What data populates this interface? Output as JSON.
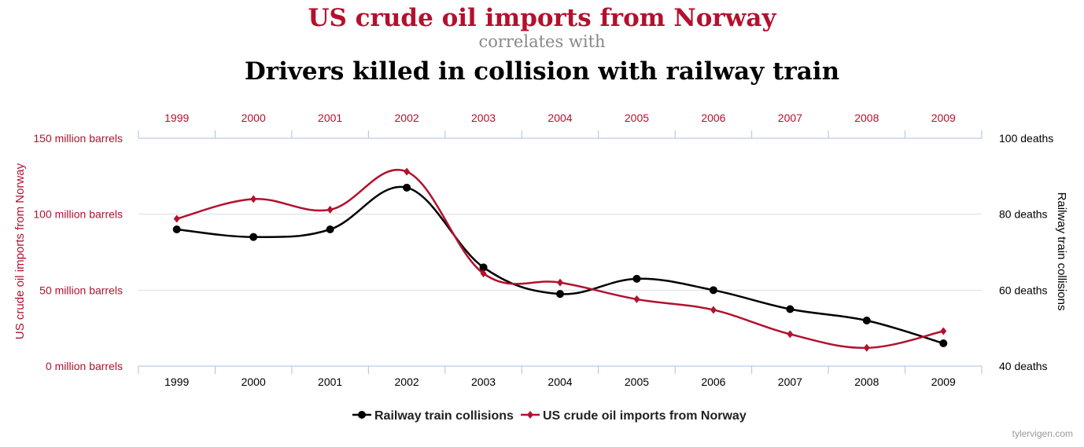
{
  "chart_data": {
    "type": "line",
    "title": "US crude oil imports from Norway",
    "subtitle": "correlates with",
    "title2": "Drivers killed in collision with railway train",
    "categories": [
      "1999",
      "2000",
      "2001",
      "2002",
      "2003",
      "2004",
      "2005",
      "2006",
      "2007",
      "2008",
      "2009"
    ],
    "series": [
      {
        "name": "Railway train collisions",
        "axis": "right",
        "color": "#000000",
        "marker": "circle",
        "values": [
          76,
          74,
          76,
          87,
          66,
          59,
          63,
          60,
          55,
          52,
          46
        ]
      },
      {
        "name": "US crude oil imports from Norway",
        "axis": "left",
        "color": "#b3112e",
        "marker": "diamond",
        "values": [
          97,
          110,
          103,
          128,
          61,
          55,
          44,
          37,
          21,
          12,
          23
        ]
      }
    ],
    "y_left": {
      "label": "US crude oil imports from Norway",
      "ylim": [
        0,
        150
      ],
      "ticks": [
        0,
        50,
        100,
        150
      ],
      "tick_labels": [
        "0 million barrels",
        "50 million barrels",
        "100 million barrels",
        "150 million barrels"
      ],
      "color": "#b3112e"
    },
    "y_right": {
      "label": "Railway train collisions",
      "ylim": [
        40,
        100
      ],
      "ticks": [
        40,
        60,
        80,
        100
      ],
      "tick_labels": [
        "40 deaths",
        "60 deaths",
        "80 deaths",
        "100 deaths"
      ],
      "color": "#000000"
    },
    "x_top_color": "#b3112e",
    "grid": true,
    "legend_position": "bottom-center",
    "watermark": "tylervigen.com"
  }
}
